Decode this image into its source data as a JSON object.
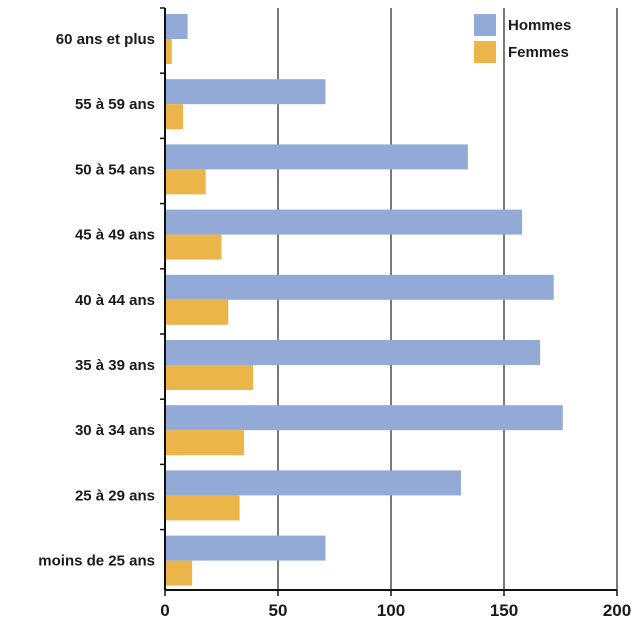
{
  "chart_data": {
    "type": "bar",
    "orientation": "horizontal",
    "categories": [
      "60 ans et plus",
      "55 à 59 ans",
      "50 à 54 ans",
      "45 à 49 ans",
      "40 à 44 ans",
      "35 à 39 ans",
      "30 à 34 ans",
      "25 à 29 ans",
      "moins de 25 ans"
    ],
    "series": [
      {
        "name": "Hommes",
        "color": "#93a9d6",
        "values": [
          10,
          71,
          134,
          158,
          172,
          166,
          176,
          131,
          71
        ]
      },
      {
        "name": "Femmes",
        "color": "#ebb54a",
        "values": [
          3,
          8,
          18,
          25,
          28,
          39,
          35,
          33,
          12
        ]
      }
    ],
    "xlim": [
      0,
      200
    ],
    "x_ticks": [
      0,
      50,
      100,
      150,
      200
    ],
    "x_tick_labels": [
      "0",
      "50",
      "100",
      "150",
      "200"
    ],
    "grid": "vertical",
    "legend": "top-right",
    "title": "",
    "xlabel": "",
    "ylabel": ""
  }
}
